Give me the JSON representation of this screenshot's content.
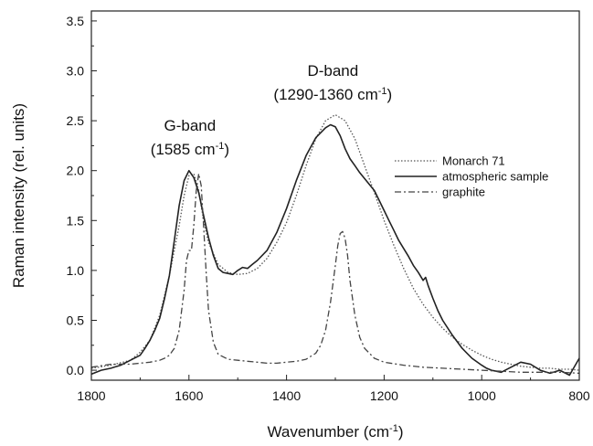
{
  "chart_data": {
    "type": "line",
    "title": "",
    "xlabel": "Wavenumber (cm",
    "xlabel_sup": "-1",
    "xlabel_end": ")",
    "ylabel": "Raman intensity  (rel. units)",
    "xlim": [
      1800,
      800
    ],
    "ylim": [
      -0.1,
      3.6
    ],
    "x_reversed": true,
    "x_ticks": [
      1800,
      1600,
      1400,
      1200,
      1000,
      800
    ],
    "y_ticks": [
      0.0,
      0.5,
      1.0,
      1.5,
      2.0,
      2.5,
      3.0,
      3.5
    ],
    "x_tick_labels": [
      "1800",
      "1600",
      "1400",
      "1200",
      "1000",
      "800"
    ],
    "y_tick_labels": [
      "0.0",
      "0.5",
      "1.0",
      "1.5",
      "2.0",
      "2.5",
      "3.0",
      "3.5"
    ],
    "grid": false,
    "legend_position": "right",
    "annotations": [
      {
        "line1": "G-band",
        "line2_pre": "(1585 cm",
        "line2_sup": "-1",
        "line2_post": ")",
        "x": 1598,
        "y": 2.4
      },
      {
        "line1": "D-band",
        "line2_pre": "(1290-1360 cm",
        "line2_sup": "-1",
        "line2_post": ")",
        "x": 1305,
        "y": 2.95
      }
    ],
    "series": [
      {
        "name": "Monarch 71",
        "style": "dotted",
        "color": "#555555",
        "x": [
          1800,
          1760,
          1720,
          1700,
          1680,
          1660,
          1640,
          1620,
          1610,
          1600,
          1590,
          1580,
          1570,
          1560,
          1540,
          1520,
          1500,
          1480,
          1460,
          1440,
          1420,
          1400,
          1380,
          1360,
          1340,
          1320,
          1300,
          1280,
          1260,
          1240,
          1220,
          1200,
          1180,
          1160,
          1140,
          1120,
          1100,
          1080,
          1060,
          1040,
          1020,
          1000,
          980,
          960,
          940,
          920,
          900,
          880,
          860,
          840,
          820,
          800
        ],
        "y": [
          0.02,
          0.05,
          0.1,
          0.18,
          0.3,
          0.55,
          0.95,
          1.45,
          1.75,
          1.95,
          1.97,
          1.8,
          1.5,
          1.28,
          1.06,
          0.98,
          0.96,
          0.97,
          1.02,
          1.12,
          1.28,
          1.48,
          1.75,
          2.05,
          2.32,
          2.5,
          2.56,
          2.5,
          2.32,
          2.05,
          1.78,
          1.5,
          1.25,
          1.02,
          0.82,
          0.66,
          0.53,
          0.42,
          0.33,
          0.26,
          0.2,
          0.15,
          0.11,
          0.08,
          0.06,
          0.04,
          0.03,
          0.02,
          0.02,
          0.01,
          0.01,
          0.0
        ]
      },
      {
        "name": "atmospheric sample",
        "style": "solid",
        "color": "#222222",
        "x": [
          1800,
          1780,
          1760,
          1740,
          1720,
          1700,
          1690,
          1680,
          1670,
          1660,
          1650,
          1640,
          1630,
          1620,
          1610,
          1600,
          1590,
          1580,
          1570,
          1560,
          1550,
          1540,
          1530,
          1520,
          1510,
          1500,
          1490,
          1480,
          1470,
          1460,
          1440,
          1420,
          1400,
          1380,
          1360,
          1340,
          1320,
          1310,
          1300,
          1290,
          1280,
          1270,
          1260,
          1250,
          1240,
          1230,
          1220,
          1210,
          1200,
          1190,
          1180,
          1170,
          1160,
          1150,
          1140,
          1130,
          1120,
          1115,
          1110,
          1100,
          1090,
          1080,
          1060,
          1040,
          1020,
          1000,
          990,
          980,
          970,
          960,
          940,
          920,
          900,
          880,
          860,
          840,
          820,
          800
        ],
        "y": [
          -0.04,
          0.0,
          0.02,
          0.05,
          0.1,
          0.15,
          0.22,
          0.3,
          0.4,
          0.52,
          0.72,
          0.95,
          1.3,
          1.65,
          1.9,
          2.0,
          1.93,
          1.78,
          1.55,
          1.33,
          1.15,
          1.02,
          0.98,
          0.97,
          0.96,
          1.0,
          1.03,
          1.02,
          1.06,
          1.1,
          1.2,
          1.38,
          1.62,
          1.9,
          2.15,
          2.33,
          2.43,
          2.46,
          2.44,
          2.35,
          2.22,
          2.12,
          2.05,
          1.98,
          1.92,
          1.86,
          1.8,
          1.7,
          1.6,
          1.5,
          1.4,
          1.3,
          1.22,
          1.14,
          1.05,
          0.98,
          0.9,
          0.93,
          0.85,
          0.72,
          0.6,
          0.5,
          0.35,
          0.22,
          0.12,
          0.05,
          0.02,
          0.0,
          -0.01,
          -0.02,
          0.03,
          0.08,
          0.06,
          0.0,
          -0.03,
          0.0,
          -0.05,
          0.12
        ]
      },
      {
        "name": "graphite",
        "style": "dashdot",
        "color": "#444444",
        "x": [
          1800,
          1760,
          1720,
          1700,
          1680,
          1660,
          1650,
          1640,
          1630,
          1620,
          1610,
          1605,
          1600,
          1595,
          1590,
          1585,
          1580,
          1575,
          1570,
          1565,
          1560,
          1550,
          1540,
          1520,
          1500,
          1480,
          1460,
          1440,
          1420,
          1400,
          1380,
          1360,
          1340,
          1330,
          1320,
          1310,
          1300,
          1295,
          1290,
          1285,
          1280,
          1275,
          1270,
          1260,
          1250,
          1240,
          1220,
          1200,
          1160,
          1120,
          1080,
          1040,
          1000,
          960,
          920,
          880,
          840,
          800
        ],
        "y": [
          0.03,
          0.06,
          0.06,
          0.07,
          0.08,
          0.1,
          0.12,
          0.15,
          0.22,
          0.4,
          0.8,
          1.1,
          1.2,
          1.2,
          1.45,
          1.8,
          1.97,
          1.85,
          1.45,
          1.0,
          0.6,
          0.28,
          0.16,
          0.11,
          0.1,
          0.09,
          0.08,
          0.07,
          0.07,
          0.08,
          0.09,
          0.11,
          0.17,
          0.25,
          0.4,
          0.68,
          1.05,
          1.25,
          1.37,
          1.39,
          1.32,
          1.15,
          0.9,
          0.55,
          0.33,
          0.22,
          0.12,
          0.08,
          0.05,
          0.03,
          0.02,
          0.01,
          0.0,
          -0.01,
          -0.02,
          -0.02,
          -0.02,
          -0.03
        ]
      }
    ]
  }
}
